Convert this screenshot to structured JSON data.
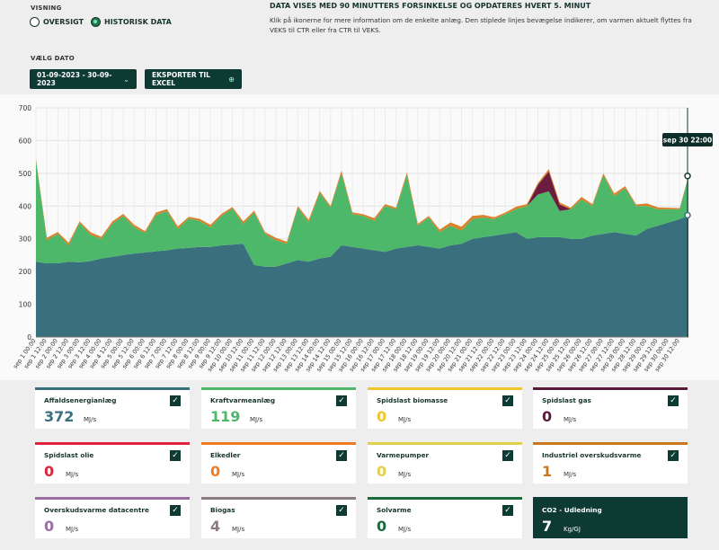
{
  "header": {
    "view_label": "VISNING",
    "radio_overview": "OVERSIGT",
    "radio_historic": "HISTORISK DATA",
    "info_title": "DATA VISES MED 90 MINUTTERS FORSINKELSE OG OPDATERES HVERT 5. MINUT",
    "info_text": "Klik på ikonerne for mere information om de enkelte anlæg. Den stiplede linjes bevægelse indikerer, om varmen aktuelt flyttes fra VEKS til CTR eller fra CTR til VEKS.",
    "date_label": "VÆLG DATO",
    "date_range": "01-09-2023 - 30-09-2023",
    "export_label": "EKSPORTER TIL EXCEL",
    "chevron_icon": "chevron-down-icon",
    "export_icon": "download-icon"
  },
  "chart_data": {
    "type": "area",
    "ylim": [
      0,
      700
    ],
    "yticks": [
      0,
      100,
      200,
      300,
      400,
      500,
      600,
      700
    ],
    "tooltip": "sep 30 22:00",
    "x_tick_labels": [
      "sep 1 00:00",
      "sep 1 12:00",
      "sep 2 00:00",
      "sep 2 12:00",
      "sep 3 00:00",
      "sep 3 12:00",
      "sep 4 00:00",
      "sep 4 12:00",
      "sep 5 00:00",
      "sep 5 12:00",
      "sep 6 00:00",
      "sep 6 12:00",
      "sep 7 00:00",
      "sep 7 12:00",
      "sep 8 00:00",
      "sep 8 12:00",
      "sep 9 00:00",
      "sep 9 12:00",
      "sep 10 00:00",
      "sep 10 12:00",
      "sep 11 00:00",
      "sep 11 12:00",
      "sep 12 00:00",
      "sep 12 12:00",
      "sep 13 00:00",
      "sep 13 12:00",
      "sep 14 00:00",
      "sep 14 12:00",
      "sep 15 00:00",
      "sep 15 12:00",
      "sep 16 00:00",
      "sep 16 12:00",
      "sep 17 00:00",
      "sep 17 12:00",
      "sep 18 00:00",
      "sep 18 12:00",
      "sep 19 00:00",
      "sep 19 12:00",
      "sep 20 00:00",
      "sep 20 12:00",
      "sep 21 00:00",
      "sep 21 12:00",
      "sep 22 00:00",
      "sep 22 12:00",
      "sep 23 00:00",
      "sep 23 12:00",
      "sep 24 00:00",
      "sep 24 12:00",
      "sep 25 00:00",
      "sep 25 12:00",
      "sep 26 00:00",
      "sep 26 12:00",
      "sep 27 00:00",
      "sep 27 12:00",
      "sep 28 00:00",
      "sep 28 12:00",
      "sep 29 00:00",
      "sep 29 12:00",
      "sep 30 00:00",
      "sep 30 12:00"
    ],
    "x": [
      0,
      1,
      2,
      3,
      4,
      5,
      6,
      7,
      8,
      9,
      10,
      11,
      12,
      13,
      14,
      15,
      16,
      17,
      18,
      19,
      20,
      21,
      22,
      23,
      24,
      25,
      26,
      27,
      28,
      29,
      30,
      31,
      32,
      33,
      34,
      35,
      36,
      37,
      38,
      39,
      40,
      41,
      42,
      43,
      44,
      45,
      46,
      47,
      48,
      49,
      50,
      51,
      52,
      53,
      54,
      55,
      56,
      57,
      58,
      59,
      59.8
    ],
    "series": [
      {
        "name": "Affaldsenergianlæg",
        "color": "#3a6f7d",
        "values": [
          230,
          225,
          225,
          230,
          228,
          232,
          240,
          245,
          250,
          255,
          258,
          262,
          265,
          270,
          272,
          275,
          275,
          280,
          282,
          285,
          220,
          215,
          215,
          225,
          235,
          230,
          240,
          245,
          280,
          275,
          270,
          265,
          260,
          270,
          275,
          280,
          275,
          270,
          280,
          285,
          300,
          305,
          310,
          315,
          320,
          300,
          305,
          305,
          305,
          300,
          300,
          310,
          315,
          320,
          315,
          310,
          330,
          340,
          350,
          360,
          372
        ]
      },
      {
        "name": "Kraftvarmeanlæg",
        "color": "#4db86a",
        "values": [
          310,
          70,
          90,
          50,
          120,
          80,
          60,
          100,
          120,
          80,
          60,
          110,
          120,
          60,
          90,
          80,
          60,
          90,
          110,
          60,
          160,
          100,
          80,
          60,
          160,
          120,
          200,
          150,
          220,
          100,
          100,
          90,
          140,
          120,
          220,
          60,
          90,
          50,
          60,
          40,
          60,
          60,
          50,
          60,
          70,
          100,
          130,
          140,
          80,
          90,
          120,
          90,
          180,
          110,
          140,
          90,
          70,
          50,
          40,
          30,
          119
        ]
      },
      {
        "name": "Spidslast biomasse",
        "color": "#f1c52f",
        "values": [
          0,
          0,
          0,
          0,
          0,
          0,
          0,
          0,
          0,
          0,
          0,
          0,
          0,
          0,
          0,
          0,
          0,
          0,
          0,
          0,
          0,
          0,
          0,
          0,
          0,
          0,
          0,
          0,
          0,
          0,
          0,
          0,
          0,
          0,
          0,
          0,
          0,
          0,
          0,
          0,
          0,
          0,
          0,
          0,
          0,
          0,
          0,
          0,
          0,
          0,
          0,
          0,
          0,
          0,
          0,
          0,
          0,
          0,
          0,
          0,
          0
        ]
      },
      {
        "name": "Spidslast gas",
        "color": "#6b1d3f",
        "values": [
          0,
          0,
          0,
          0,
          0,
          0,
          0,
          0,
          0,
          0,
          0,
          0,
          0,
          0,
          0,
          0,
          0,
          0,
          0,
          0,
          0,
          0,
          0,
          0,
          0,
          0,
          0,
          0,
          0,
          0,
          0,
          0,
          0,
          0,
          0,
          0,
          0,
          0,
          0,
          0,
          0,
          0,
          0,
          0,
          0,
          0,
          30,
          60,
          20,
          0,
          0,
          0,
          0,
          0,
          0,
          0,
          0,
          0,
          0,
          0,
          0
        ]
      },
      {
        "name": "Industriel overskudsvarme",
        "color": "#d9822b",
        "values": [
          5,
          8,
          6,
          8,
          5,
          8,
          6,
          8,
          6,
          8,
          5,
          8,
          6,
          8,
          5,
          6,
          8,
          6,
          5,
          8,
          6,
          5,
          8,
          6,
          5,
          8,
          6,
          5,
          8,
          6,
          5,
          8,
          6,
          5,
          8,
          6,
          5,
          8,
          10,
          12,
          10,
          8,
          6,
          5,
          8,
          6,
          5,
          8,
          6,
          5,
          8,
          6,
          5,
          8,
          6,
          5,
          8,
          6,
          5,
          4,
          1
        ]
      }
    ]
  },
  "cards": [
    {
      "name": "Affaldsenergianlæg",
      "value": "372",
      "unit": "MJ/s",
      "color": "#3a6f7d",
      "check": "✓"
    },
    {
      "name": "Kraftvarmeanlæg",
      "value": "119",
      "unit": "MJ/s",
      "color": "#4db86a",
      "check": "✓"
    },
    {
      "name": "Spidslast biomasse",
      "value": "0",
      "unit": "MJ/s",
      "color": "#f1c52f",
      "check": "✓"
    },
    {
      "name": "Spidslast gas",
      "value": "0",
      "unit": "MJ/s",
      "color": "#5a1a3c",
      "check": "✓"
    },
    {
      "name": "Spidslast olie",
      "value": "0",
      "unit": "MJ/s",
      "color": "#e0243c",
      "check": "✓"
    },
    {
      "name": "Elkedler",
      "value": "0",
      "unit": "MJ/s",
      "color": "#f07b22",
      "check": "✓"
    },
    {
      "name": "Varmepumper",
      "value": "0",
      "unit": "MJ/s",
      "color": "#e3d04a",
      "check": "✓"
    },
    {
      "name": "Industriel overskudsvarme",
      "value": "1",
      "unit": "MJ/s",
      "color": "#c8781a",
      "check": "✓"
    },
    {
      "name": "Overskudsvarme datacentre",
      "value": "0",
      "unit": "MJ/s",
      "color": "#9a6ca3",
      "check": "✓"
    },
    {
      "name": "Biogas",
      "value": "4",
      "unit": "MJ/s",
      "color": "#8a7b80",
      "check": "✓"
    },
    {
      "name": "Solvarme",
      "value": "0",
      "unit": "MJ/s",
      "color": "#1a6b3c",
      "check": "✓"
    },
    {
      "name": "CO2 - Udledning",
      "value": "7",
      "unit": "Kg/GJ",
      "color": "#0d3b33",
      "check": ""
    }
  ]
}
